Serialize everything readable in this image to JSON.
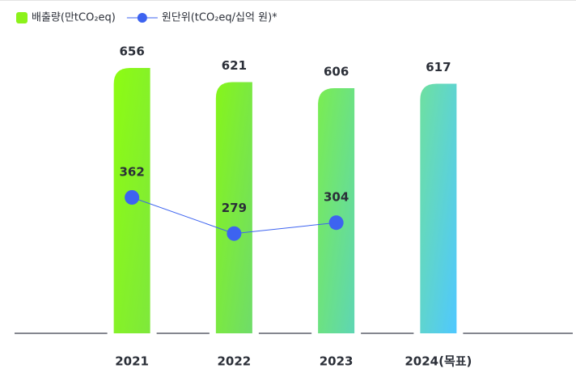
{
  "chart_data": {
    "type": "bar",
    "categories": [
      "2021",
      "2022",
      "2023",
      "2024(목표)"
    ],
    "series": [
      {
        "name": "배출량(만tCO₂eq)",
        "type": "bar",
        "color": "#8cf21a",
        "gradients": [
          [
            "#8dfc12",
            "#7ee83c"
          ],
          [
            "#86f51a",
            "#6fdc6a"
          ],
          [
            "#7aed50",
            "#5ed6b4"
          ],
          [
            "#6ee0a0",
            "#4fc8ff"
          ]
        ],
        "values": [
          656,
          621,
          606,
          617
        ]
      },
      {
        "name": "원단위(tCO₂eq/십억 원)*",
        "type": "line",
        "axis": "y2",
        "color": "#3d63f0",
        "values": [
          362,
          279,
          304,
          null
        ]
      }
    ],
    "ylim": [
      0,
      700
    ],
    "y2lim": [
      50,
      700
    ]
  }
}
